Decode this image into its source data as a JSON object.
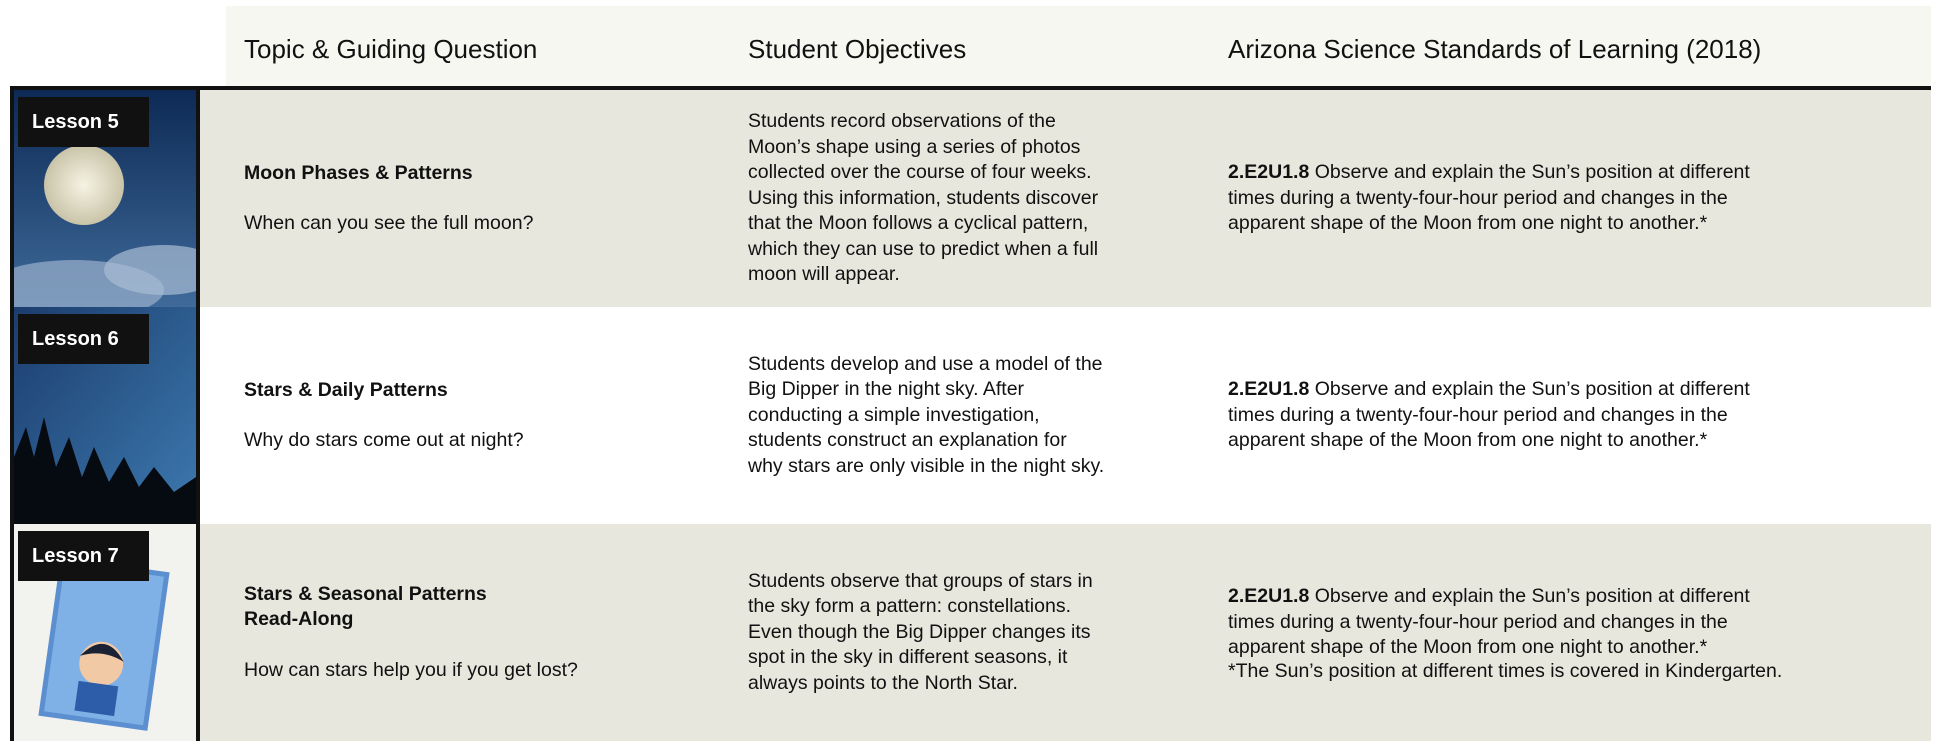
{
  "header": {
    "columns": [
      "Topic & Guiding Question",
      "Student Objectives",
      "Arizona Science Standards of Learning (2018)"
    ]
  },
  "rows": [
    {
      "lesson": "Lesson 5",
      "topic": [
        "Moon Phases & Patterns"
      ],
      "question": "When can you see the full moon?",
      "objective": [
        "Students record observations of the",
        "Moon’s shape using a series of photos",
        "collected over the course of four weeks.",
        "Using this information, students discover",
        "that the Moon follows a cyclical pattern,",
        "which they can use to predict when a full",
        "moon will appear."
      ],
      "standard_code": "2.E2U1.8",
      "standard": [
        "Observe and explain the Sun’s position at different",
        "times during a twenty-four-hour period and changes in the",
        "apparent shape of the Moon from one night to another.*"
      ]
    },
    {
      "lesson": "Lesson 6",
      "topic": [
        "Stars & Daily Patterns"
      ],
      "question": "Why do stars come out at night?",
      "objective": [
        "Students develop and use a model of the",
        "Big Dipper in the night sky. After",
        "conducting a simple investigation,",
        "students construct an explanation for",
        "why stars are only visible in the night sky."
      ],
      "standard_code": "2.E2U1.8",
      "standard": [
        "Observe and explain the Sun’s position at different",
        "times during a twenty-four-hour period and changes in the",
        "apparent shape of the Moon from one night to another.*"
      ]
    },
    {
      "lesson": "Lesson 7",
      "topic": [
        "Stars & Seasonal Patterns",
        "Read-Along"
      ],
      "question": "How can stars help you if you get lost?",
      "objective": [
        "Students observe that groups of stars in",
        "the sky form a pattern: constellations.",
        "Even though the Big Dipper changes its",
        "spot in the sky in different seasons, it",
        "always points to the North Star."
      ],
      "standard_code": "2.E2U1.8",
      "standard": [
        "Observe and explain the Sun’s position at different",
        "times during a twenty-four-hour period and changes in the",
        "apparent shape of the Moon from one night to another.*"
      ],
      "footnote": "*The Sun’s position at different times is covered in Kindergarten."
    }
  ]
}
